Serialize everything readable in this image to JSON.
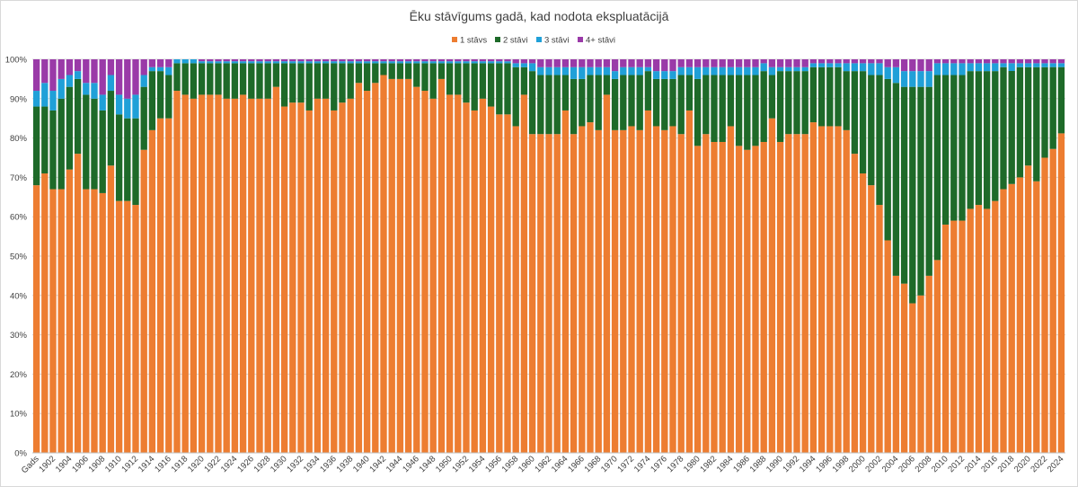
{
  "chart_data": {
    "type": "bar",
    "stacked": true,
    "percent": true,
    "title": "Ēku stāvīgums gadā, kad nodota ekspluatācijā",
    "xlabel": "",
    "ylabel": "",
    "ylim": [
      0,
      100
    ],
    "yticks": [
      "0%",
      "10%",
      "20%",
      "30%",
      "40%",
      "50%",
      "60%",
      "70%",
      "80%",
      "90%",
      "100%"
    ],
    "legend_position": "top-center",
    "categories": [
      "Gads",
      "1901",
      "1902",
      "1903",
      "1904",
      "1905",
      "1906",
      "1907",
      "1908",
      "1909",
      "1910",
      "1911",
      "1912",
      "1913",
      "1914",
      "1915",
      "1916",
      "1917",
      "1918",
      "1919",
      "1920",
      "1921",
      "1922",
      "1923",
      "1924",
      "1925",
      "1926",
      "1927",
      "1928",
      "1929",
      "1930",
      "1931",
      "1932",
      "1933",
      "1934",
      "1935",
      "1936",
      "1937",
      "1938",
      "1939",
      "1940",
      "1941",
      "1942",
      "1943",
      "1944",
      "1945",
      "1946",
      "1947",
      "1948",
      "1949",
      "1950",
      "1951",
      "1952",
      "1953",
      "1954",
      "1955",
      "1956",
      "1957",
      "1958",
      "1959",
      "1960",
      "1961",
      "1962",
      "1963",
      "1964",
      "1965",
      "1966",
      "1967",
      "1968",
      "1969",
      "1970",
      "1971",
      "1972",
      "1973",
      "1974",
      "1975",
      "1976",
      "1977",
      "1978",
      "1979",
      "1980",
      "1981",
      "1982",
      "1983",
      "1984",
      "1985",
      "1986",
      "1987",
      "1988",
      "1989",
      "1990",
      "1991",
      "1992",
      "1993",
      "1994",
      "1995",
      "1996",
      "1997",
      "1998",
      "1999",
      "2000",
      "2001",
      "2002",
      "2003",
      "2004",
      "2005",
      "2006",
      "2007",
      "2008",
      "2009",
      "2010",
      "2011",
      "2012",
      "2013",
      "2014",
      "2015",
      "2016",
      "2017",
      "2018",
      "2019",
      "2020",
      "2021",
      "2022",
      "2023",
      "2024"
    ],
    "series": [
      {
        "name": "1 stāvs",
        "color": "#ed7d31",
        "values": [
          68,
          71,
          67,
          67,
          72,
          76,
          67,
          67,
          66,
          73,
          64,
          64,
          63,
          77,
          82,
          85,
          85,
          92,
          91,
          90,
          91,
          91,
          91,
          90,
          90,
          91,
          90,
          90,
          90,
          93,
          88,
          89,
          89,
          87,
          90,
          90,
          87,
          89,
          90,
          94,
          92,
          94,
          96,
          95,
          95,
          95,
          93,
          92,
          90,
          95,
          91,
          91,
          89,
          87,
          90,
          88,
          86,
          86,
          83,
          91,
          81,
          81,
          81,
          81,
          87,
          81,
          83,
          84,
          82,
          91,
          82,
          82,
          83,
          82,
          87,
          83,
          82,
          83,
          81,
          87,
          78,
          81,
          79,
          79,
          83,
          78,
          77,
          78,
          79,
          85,
          79,
          81,
          81,
          81,
          84,
          83,
          83,
          83,
          82,
          76,
          71,
          68,
          63,
          54,
          45,
          43,
          38,
          40,
          45,
          49,
          58,
          59,
          59,
          62,
          63,
          62,
          64,
          67,
          69,
          70,
          73,
          69,
          75,
          78,
          82
        ]
      },
      {
        "name": "2 stāvi",
        "color": "#1e6a29",
        "values": [
          20,
          17,
          20,
          23,
          21,
          19,
          24,
          23,
          21,
          19,
          22,
          21,
          22,
          16,
          15,
          12,
          11,
          7,
          8,
          9,
          8,
          8,
          8,
          9,
          9,
          8,
          9,
          9,
          9,
          6,
          11,
          10,
          10,
          12,
          9,
          9,
          12,
          10,
          9,
          5,
          7,
          5,
          3,
          4,
          4,
          4,
          6,
          7,
          9,
          4,
          8,
          8,
          10,
          12,
          9,
          11,
          13,
          13,
          15,
          7,
          16,
          15,
          15,
          15,
          9,
          14,
          12,
          12,
          14,
          5,
          13,
          14,
          13,
          14,
          10,
          12,
          13,
          12,
          15,
          9,
          17,
          15,
          17,
          17,
          13,
          18,
          19,
          18,
          18,
          11,
          18,
          16,
          16,
          16,
          14,
          15,
          15,
          15,
          15,
          21,
          26,
          28,
          33,
          41,
          49,
          50,
          55,
          53,
          48,
          47,
          38,
          37,
          37,
          35,
          34,
          35,
          33,
          31,
          29,
          28,
          25,
          29,
          23,
          21,
          17
        ]
      },
      {
        "name": "3 stāvi",
        "color": "#20a0d8",
        "values": [
          4,
          6,
          5,
          5,
          3,
          2,
          3,
          4,
          4,
          4,
          5,
          5,
          6,
          3,
          1,
          1,
          2,
          1,
          1,
          1,
          0.5,
          0.5,
          0.5,
          0.5,
          0.5,
          0.5,
          0.5,
          0.5,
          0.5,
          0.5,
          0.5,
          0.5,
          0.5,
          0.5,
          0.5,
          0.5,
          0.5,
          0.5,
          0.5,
          0.5,
          0.5,
          0.5,
          0.5,
          0.5,
          0.5,
          0.5,
          0.5,
          0.5,
          0.5,
          0.5,
          0.5,
          0.5,
          0.5,
          0.5,
          0.5,
          0.5,
          0.5,
          0.5,
          1,
          1,
          2,
          2,
          2,
          2,
          2,
          3,
          3,
          2,
          2,
          2,
          2,
          2,
          2,
          2,
          1,
          2,
          2,
          2,
          2,
          2,
          3,
          2,
          2,
          2,
          2,
          2,
          2,
          2,
          2,
          2,
          1,
          1,
          1,
          1,
          1,
          1,
          1,
          1,
          2,
          2,
          2,
          3,
          3,
          3,
          4,
          4,
          4,
          4,
          4,
          3,
          3,
          3,
          3,
          2,
          2,
          2,
          2,
          1,
          2,
          1,
          1,
          1,
          1,
          1,
          1
        ]
      },
      {
        "name": "4+ stāvi",
        "color": "#9a3aa8",
        "values": [
          8,
          6,
          8,
          5,
          4,
          3,
          6,
          6,
          9,
          4,
          9,
          10,
          9,
          4,
          2,
          2,
          2,
          0,
          0,
          0,
          0.5,
          0.5,
          0.5,
          0.5,
          0.5,
          0.5,
          0.5,
          0.5,
          0.5,
          0.5,
          0.5,
          0.5,
          0.5,
          0.5,
          0.5,
          0.5,
          0.5,
          0.5,
          0.5,
          0.5,
          0.5,
          0.5,
          0.5,
          0.5,
          0.5,
          0.5,
          0.5,
          0.5,
          0.5,
          0.5,
          0.5,
          0.5,
          0.5,
          0.5,
          0.5,
          0.5,
          0.5,
          0.5,
          1,
          1,
          1,
          2,
          2,
          2,
          2,
          2,
          2,
          2,
          2,
          2,
          3,
          2,
          2,
          2,
          2,
          3,
          3,
          3,
          2,
          2,
          2,
          2,
          2,
          2,
          2,
          2,
          2,
          2,
          1,
          2,
          2,
          2,
          2,
          2,
          1,
          1,
          1,
          1,
          1,
          1,
          1,
          1,
          1,
          2,
          2,
          3,
          3,
          3,
          3,
          1,
          1,
          1,
          1,
          1,
          1,
          1,
          1,
          1,
          1,
          1,
          1,
          1,
          1,
          1,
          1
        ]
      }
    ]
  }
}
